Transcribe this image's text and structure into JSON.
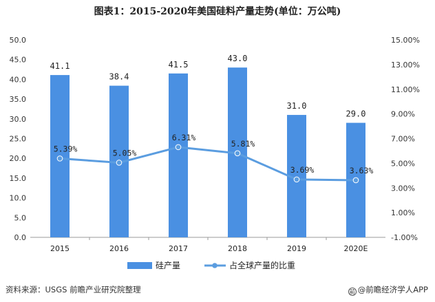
{
  "chart_data": {
    "type": "bar",
    "title": "图表1：2015-2020年美国硅料产量走势(单位：万公吨)",
    "categories": [
      "2015",
      "2016",
      "2017",
      "2018",
      "2019",
      "2020E"
    ],
    "series": [
      {
        "name": "硅产量",
        "type": "bar",
        "axis": "left",
        "color": "#4a90e2",
        "values": [
          41.1,
          38.4,
          41.5,
          43.0,
          31.0,
          29.0
        ],
        "labels": [
          "41.1",
          "38.4",
          "41.5",
          "43.0",
          "31.0",
          "29.0"
        ]
      },
      {
        "name": "占全球产量的比重",
        "type": "line",
        "axis": "right",
        "color": "#5b9de0",
        "values": [
          5.39,
          5.05,
          6.31,
          5.81,
          3.69,
          3.63
        ],
        "labels": [
          "5.39%",
          "5.05%",
          "6.31%",
          "5.81%",
          "3.69%",
          "3.63%"
        ]
      }
    ],
    "y_left": {
      "range": [
        0,
        50
      ],
      "ticks": [
        "0.0",
        "5.0",
        "10.0",
        "15.0",
        "20.0",
        "25.0",
        "30.0",
        "35.0",
        "40.0",
        "45.0",
        "50.0"
      ]
    },
    "y_right": {
      "range": [
        -1,
        15
      ],
      "ticks": [
        "-1.00%",
        "1.00%",
        "3.00%",
        "5.00%",
        "7.00%",
        "9.00%",
        "11.00%",
        "13.00%",
        "15.00%"
      ]
    },
    "grid": false,
    "legend_position": "bottom-center"
  },
  "footer": {
    "source": "资料来源：USGS 前瞻产业研究院整理",
    "brand_icon_glyph": "前",
    "brand": "@前瞻经济学人APP"
  }
}
